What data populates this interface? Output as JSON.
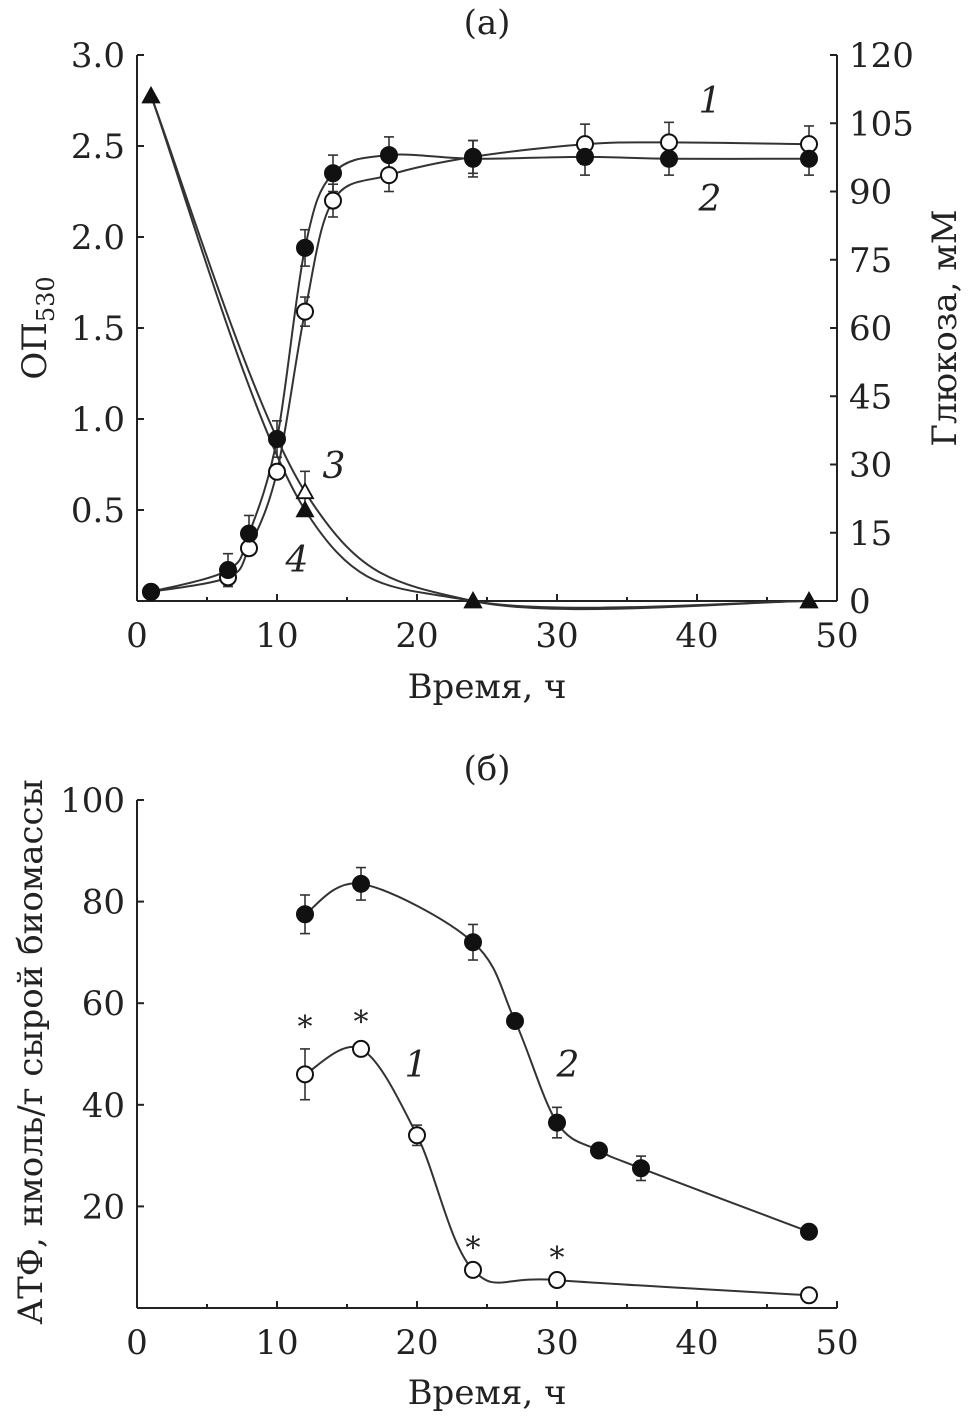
{
  "chart_data": [
    {
      "type": "line",
      "panel_label": "(а)",
      "xlabel": "Время, ч",
      "ylabel": "ОП",
      "ylabel_sub": "530",
      "y2label": "Глюкоза, мМ",
      "xlim": [
        0,
        50
      ],
      "ylim": [
        0,
        3.0
      ],
      "y2lim": [
        0,
        120
      ],
      "xticks": [
        "0",
        "10",
        "20",
        "30",
        "40",
        "50"
      ],
      "yticks": [
        "0.5",
        "1.0",
        "1.5",
        "2.0",
        "2.5",
        "3.0"
      ],
      "y2ticks": [
        "0",
        "15",
        "30",
        "45",
        "60",
        "75",
        "90",
        "105",
        "120"
      ],
      "grid": false,
      "series": [
        {
          "name": "1",
          "marker": "open-circle",
          "axis": "left",
          "x": [
            1,
            6.5,
            8,
            10,
            12,
            14,
            18,
            24,
            32,
            38,
            48
          ],
          "y": [
            0.05,
            0.13,
            0.29,
            0.71,
            1.59,
            2.2,
            2.34,
            2.44,
            2.51,
            2.52,
            2.51
          ],
          "err": [
            0,
            0.05,
            0,
            0,
            0.08,
            0.09,
            0.09,
            0.09,
            0.11,
            0.11,
            0.1
          ]
        },
        {
          "name": "2",
          "marker": "filled-circle",
          "axis": "left",
          "x": [
            1,
            6.5,
            8,
            10,
            12,
            14,
            18,
            24,
            32,
            38,
            48
          ],
          "y": [
            0.05,
            0.17,
            0.37,
            0.89,
            1.94,
            2.35,
            2.45,
            2.43,
            2.44,
            2.43,
            2.43
          ],
          "err": [
            0,
            0.09,
            0.1,
            0.1,
            0.1,
            0.1,
            0.1,
            0.1,
            0.1,
            0.09,
            0.09
          ]
        },
        {
          "name": "3",
          "marker": "open-triangle",
          "axis": "right",
          "x": [
            1,
            12,
            24,
            48
          ],
          "y": [
            111,
            24,
            0,
            0
          ],
          "err": [
            0,
            4.5,
            0,
            0
          ]
        },
        {
          "name": "4",
          "marker": "filled-triangle",
          "axis": "right",
          "x": [
            1,
            12,
            24,
            48
          ],
          "y": [
            111,
            20,
            0,
            0
          ],
          "err": [
            0,
            0,
            0,
            0
          ]
        }
      ]
    },
    {
      "type": "line",
      "panel_label": "(б)",
      "xlabel": "Время, ч",
      "ylabel": "АТФ, нмоль/г сырой биомассы",
      "xlim": [
        0,
        50
      ],
      "ylim": [
        0,
        100
      ],
      "xticks": [
        "0",
        "10",
        "20",
        "30",
        "40",
        "50"
      ],
      "yticks": [
        "20",
        "40",
        "60",
        "80",
        "100"
      ],
      "grid": false,
      "series": [
        {
          "name": "1",
          "marker": "open-circle",
          "x": [
            12,
            16,
            20,
            24,
            30,
            48
          ],
          "y": [
            46,
            51,
            34,
            7.5,
            5.5,
            2.5
          ],
          "err": [
            5,
            1,
            2,
            0,
            0,
            0
          ],
          "significant": [
            true,
            true,
            false,
            true,
            true,
            false
          ]
        },
        {
          "name": "2",
          "marker": "filled-circle",
          "x": [
            12,
            16,
            24,
            27,
            30,
            33,
            36,
            48
          ],
          "y": [
            77.5,
            83.5,
            72,
            56.5,
            36.5,
            31,
            27.5,
            15
          ],
          "err": [
            3.8,
            3.2,
            3.5,
            1.2,
            3,
            0.8,
            2.4,
            0
          ]
        }
      ],
      "annotation_symbol": "*"
    }
  ]
}
